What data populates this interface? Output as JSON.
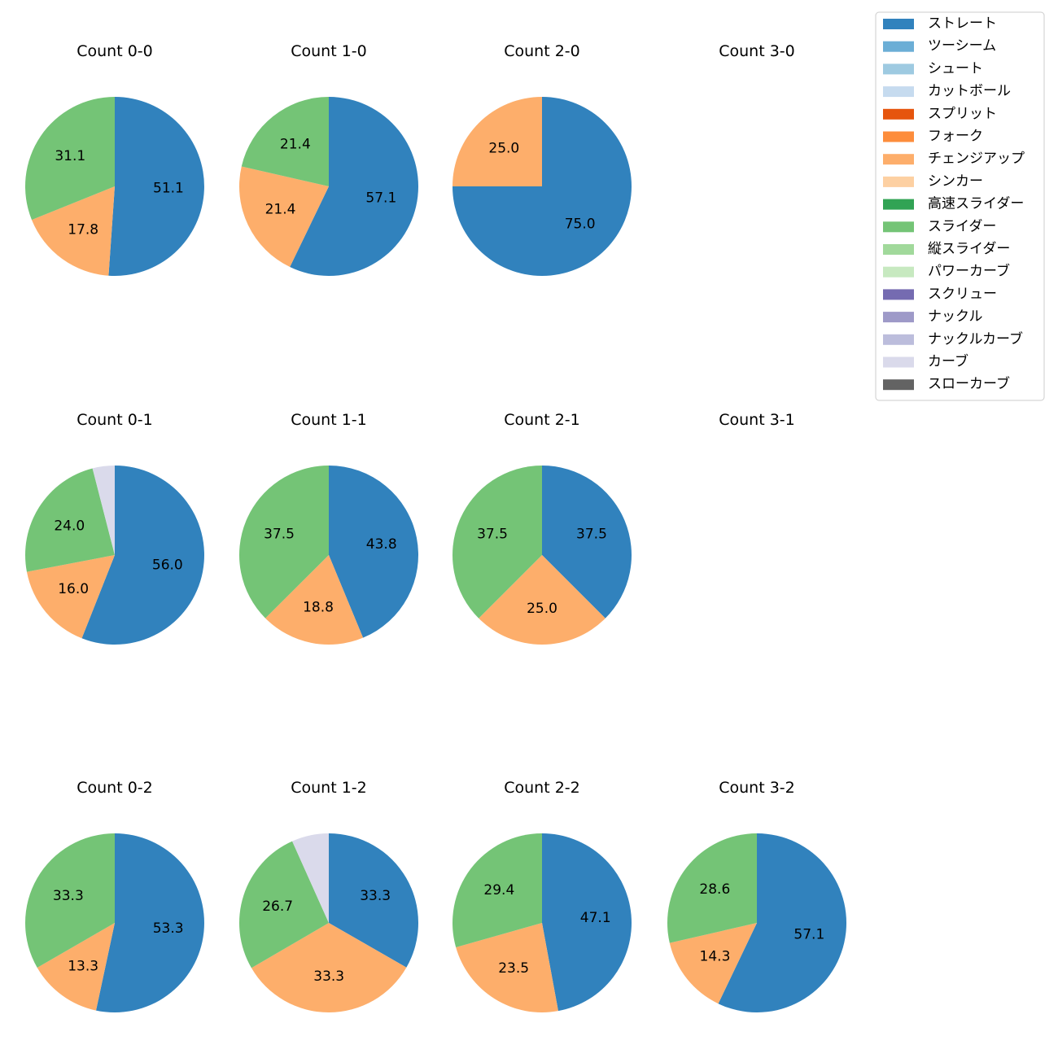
{
  "chart_data": {
    "type": "pie",
    "legend_position": "top-right",
    "legend": [
      {
        "label": "ストレート",
        "color": "#3182bd"
      },
      {
        "label": "ツーシーム",
        "color": "#6baed6"
      },
      {
        "label": "シュート",
        "color": "#9ecae1"
      },
      {
        "label": "カットボール",
        "color": "#c6dbef"
      },
      {
        "label": "スプリット",
        "color": "#e6550d"
      },
      {
        "label": "フォーク",
        "color": "#fd8d3c"
      },
      {
        "label": "チェンジアップ",
        "color": "#fdae6b"
      },
      {
        "label": "シンカー",
        "color": "#fdd0a2"
      },
      {
        "label": "高速スライダー",
        "color": "#31a354"
      },
      {
        "label": "スライダー",
        "color": "#74c476"
      },
      {
        "label": "縦スライダー",
        "color": "#a1d99b"
      },
      {
        "label": "パワーカーブ",
        "color": "#c7e9c0"
      },
      {
        "label": "スクリュー",
        "color": "#756bb1"
      },
      {
        "label": "ナックル",
        "color": "#9e9ac8"
      },
      {
        "label": "ナックルカーブ",
        "color": "#bcbddc"
      },
      {
        "label": "カーブ",
        "color": "#dadaeb"
      },
      {
        "label": "スローカーブ",
        "color": "#636363"
      }
    ],
    "panels": [
      {
        "title": "Count 0-0",
        "slices": [
          {
            "pitch": "ストレート",
            "value": 51.1,
            "label": "51.1"
          },
          {
            "pitch": "チェンジアップ",
            "value": 17.8,
            "label": "17.8"
          },
          {
            "pitch": "スライダー",
            "value": 31.1,
            "label": "31.1"
          }
        ]
      },
      {
        "title": "Count 1-0",
        "slices": [
          {
            "pitch": "ストレート",
            "value": 57.1,
            "label": "57.1"
          },
          {
            "pitch": "チェンジアップ",
            "value": 21.4,
            "label": "21.4"
          },
          {
            "pitch": "スライダー",
            "value": 21.4,
            "label": "21.4"
          }
        ]
      },
      {
        "title": "Count 2-0",
        "slices": [
          {
            "pitch": "ストレート",
            "value": 75.0,
            "label": "75.0"
          },
          {
            "pitch": "チェンジアップ",
            "value": 25.0,
            "label": "25.0"
          }
        ]
      },
      {
        "title": "Count 3-0",
        "slices": []
      },
      {
        "title": "Count 0-1",
        "slices": [
          {
            "pitch": "ストレート",
            "value": 56.0,
            "label": "56.0"
          },
          {
            "pitch": "チェンジアップ",
            "value": 16.0,
            "label": "16.0"
          },
          {
            "pitch": "スライダー",
            "value": 24.0,
            "label": "24.0"
          },
          {
            "pitch": "カーブ",
            "value": 4.0,
            "label": ""
          }
        ]
      },
      {
        "title": "Count 1-1",
        "slices": [
          {
            "pitch": "ストレート",
            "value": 43.8,
            "label": "43.8"
          },
          {
            "pitch": "チェンジアップ",
            "value": 18.8,
            "label": "18.8"
          },
          {
            "pitch": "スライダー",
            "value": 37.5,
            "label": "37.5"
          }
        ]
      },
      {
        "title": "Count 2-1",
        "slices": [
          {
            "pitch": "ストレート",
            "value": 37.5,
            "label": "37.5"
          },
          {
            "pitch": "チェンジアップ",
            "value": 25.0,
            "label": "25.0"
          },
          {
            "pitch": "スライダー",
            "value": 37.5,
            "label": "37.5"
          }
        ]
      },
      {
        "title": "Count 3-1",
        "slices": []
      },
      {
        "title": "Count 0-2",
        "slices": [
          {
            "pitch": "ストレート",
            "value": 53.3,
            "label": "53.3"
          },
          {
            "pitch": "チェンジアップ",
            "value": 13.3,
            "label": "13.3"
          },
          {
            "pitch": "スライダー",
            "value": 33.3,
            "label": "33.3"
          }
        ]
      },
      {
        "title": "Count 1-2",
        "slices": [
          {
            "pitch": "ストレート",
            "value": 33.3,
            "label": "33.3"
          },
          {
            "pitch": "チェンジアップ",
            "value": 33.3,
            "label": "33.3"
          },
          {
            "pitch": "スライダー",
            "value": 26.7,
            "label": "26.7"
          },
          {
            "pitch": "カーブ",
            "value": 6.7,
            "label": ""
          }
        ]
      },
      {
        "title": "Count 2-2",
        "slices": [
          {
            "pitch": "ストレート",
            "value": 47.1,
            "label": "47.1"
          },
          {
            "pitch": "チェンジアップ",
            "value": 23.5,
            "label": "23.5"
          },
          {
            "pitch": "スライダー",
            "value": 29.4,
            "label": "29.4"
          }
        ]
      },
      {
        "title": "Count 3-2",
        "slices": [
          {
            "pitch": "ストレート",
            "value": 57.1,
            "label": "57.1"
          },
          {
            "pitch": "チェンジアップ",
            "value": 14.3,
            "label": "14.3"
          },
          {
            "pitch": "スライダー",
            "value": 28.6,
            "label": "28.6"
          }
        ]
      }
    ]
  }
}
